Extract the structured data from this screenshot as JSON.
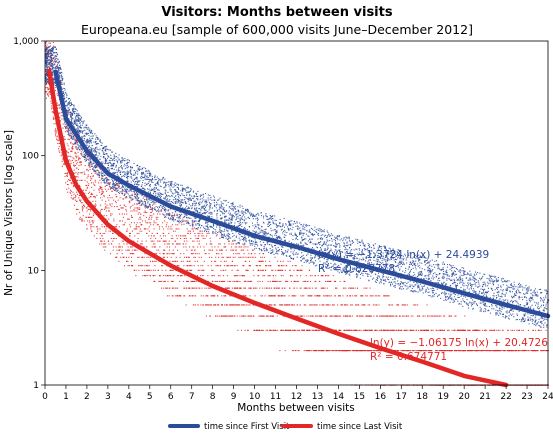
{
  "chart_data": {
    "type": "scatter",
    "title": "Visitors: Months between visits",
    "subtitle": "Europeana.eu [sample of 600,000 visits June–December 2012]",
    "xlabel": "Months between visits",
    "ylabel": "Nr of Unique Visitors [log scale]",
    "xlim": [
      0,
      24
    ],
    "ylim": [
      1,
      1000
    ],
    "y_scale": "log",
    "x_ticks": [
      "0",
      "1",
      "2",
      "3",
      "4",
      "5",
      "6",
      "7",
      "8",
      "9",
      "10",
      "11",
      "12",
      "13",
      "14",
      "15",
      "16",
      "17",
      "18",
      "19",
      "20",
      "21",
      "22",
      "23",
      "24"
    ],
    "y_ticks": [
      {
        "value": 1,
        "label": "1"
      },
      {
        "value": 10,
        "label": "10"
      },
      {
        "value": 100,
        "label": "100"
      },
      {
        "value": 1000,
        "label": "1,000"
      }
    ],
    "grid": false,
    "legend_position": "bottom",
    "series": [
      {
        "name": "time since First Visit",
        "color": "#2b4b9b",
        "trend": {
          "equation": "ln(y) = −1.3724 ln(x) + 24.4939",
          "r2": "R² = 0.828778"
        },
        "fit_points": [
          [
            0.5,
            540
          ],
          [
            1,
            210
          ],
          [
            2,
            110
          ],
          [
            3,
            70
          ],
          [
            4,
            55
          ],
          [
            6,
            36
          ],
          [
            8,
            27
          ],
          [
            10,
            20
          ],
          [
            12,
            16
          ],
          [
            14,
            12.5
          ],
          [
            16,
            10
          ],
          [
            18,
            8
          ],
          [
            20,
            6.3
          ],
          [
            22,
            5
          ],
          [
            24,
            4
          ]
        ]
      },
      {
        "name": "time since Last Visit",
        "color": "#e32626",
        "trend": {
          "equation": "ln(y) = −1.06175 ln(x) + 20.4726",
          "r2": "R² = 0.674771"
        },
        "fit_points": [
          [
            0.2,
            550
          ],
          [
            0.5,
            250
          ],
          [
            1,
            90
          ],
          [
            1.5,
            55
          ],
          [
            2,
            40
          ],
          [
            3,
            25
          ],
          [
            4,
            18
          ],
          [
            6,
            11
          ],
          [
            8,
            7.3
          ],
          [
            10,
            5.2
          ],
          [
            12,
            3.8
          ],
          [
            14,
            2.8
          ],
          [
            16,
            2.1
          ],
          [
            18,
            1.6
          ],
          [
            20,
            1.2
          ],
          [
            22,
            0.95
          ]
        ]
      }
    ]
  }
}
